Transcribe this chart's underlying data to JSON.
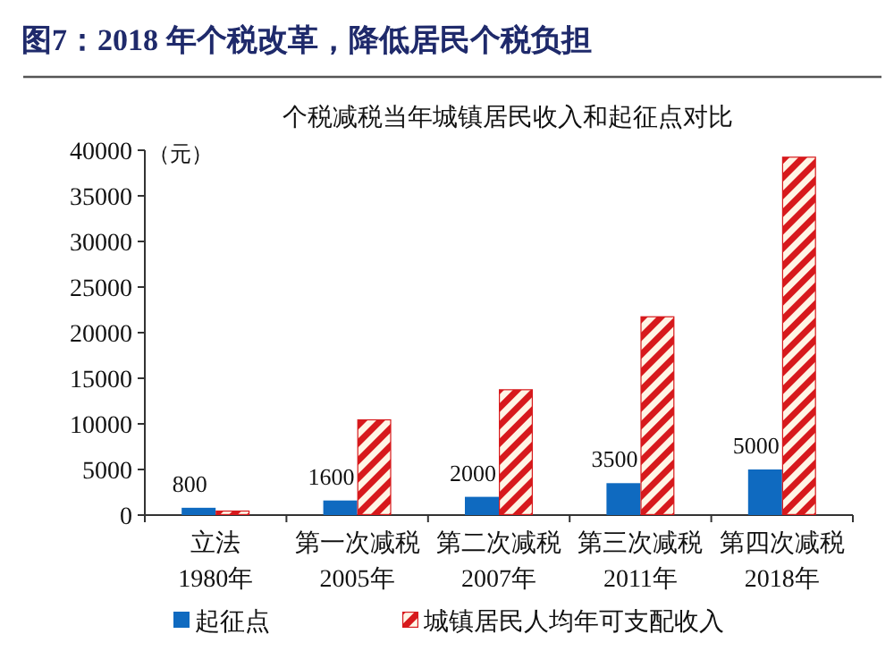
{
  "chart_data": {
    "type": "bar",
    "title": "图7：2018 年个税改革，降低居民个税负担",
    "subtitle": "个税减税当年城镇居民收入和起征点对比",
    "ylabel": "（元）",
    "categories": [
      "立法\n1980年",
      "第一次减税\n2005年",
      "第二次减税\n2007年",
      "第三次减税\n2011年",
      "第四次减税\n2018年"
    ],
    "series": [
      {
        "name": "起征点",
        "color": "#0f6ac0",
        "values": [
          800,
          1600,
          2000,
          3500,
          5000
        ],
        "value_labels": [
          "800",
          "1600",
          "2000",
          "3500",
          "5000"
        ]
      },
      {
        "name": "城镇居民人均年可支配收入",
        "color": "#d7191c",
        "values": [
          500,
          10500,
          13800,
          21800,
          39300
        ]
      }
    ],
    "ylim": [
      0,
      40000
    ],
    "yticks": [
      0,
      5000,
      10000,
      15000,
      20000,
      25000,
      30000,
      35000,
      40000
    ],
    "grid": false,
    "legend": "bottom"
  }
}
